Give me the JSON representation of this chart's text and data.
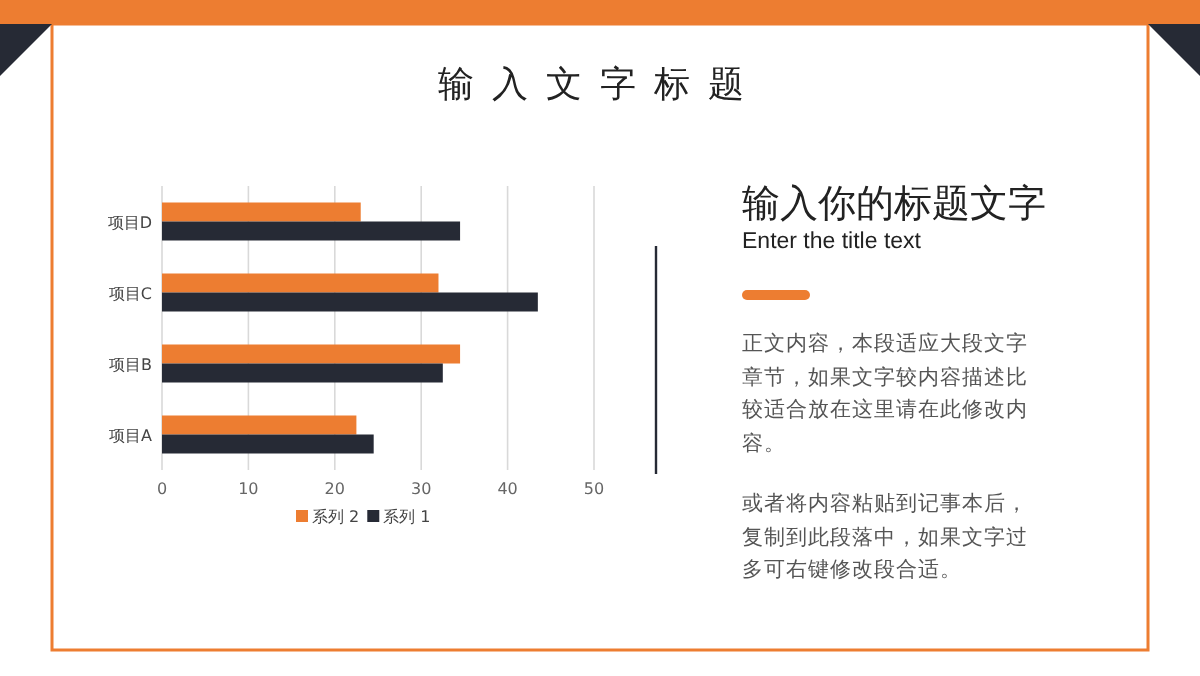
{
  "chart_data": [
    {
      "type": "bar",
      "title": "输入文字标题",
      "orientation": "horizontal",
      "categories": [
        "项目D",
        "项目C",
        "项目B",
        "项目A"
      ],
      "series": [
        {
          "name": "系列 2",
          "color": "#ed7d31",
          "values": [
            23,
            32,
            34.5,
            22.5
          ]
        },
        {
          "name": "系列 1",
          "color": "#262a35",
          "values": [
            34.5,
            43.5,
            32.5,
            24.5
          ]
        }
      ],
      "xlim": [
        0,
        50
      ],
      "xticks": [
        0,
        10,
        20,
        30,
        40,
        50
      ],
      "grid": "x",
      "legend": "bottom"
    },
    {
      "type": "other",
      "title": "输入你的标题文字",
      "subtitle": "Enter the title text",
      "annotations": [
        "正文内容，本段适应大段文字章节，如果文字较内容描述比较适合放在这里请在此修改内容。",
        "或者将内容粘贴到记事本后，复制到此段落中，如果文字过多可右键修改段合适。"
      ]
    }
  ]
}
